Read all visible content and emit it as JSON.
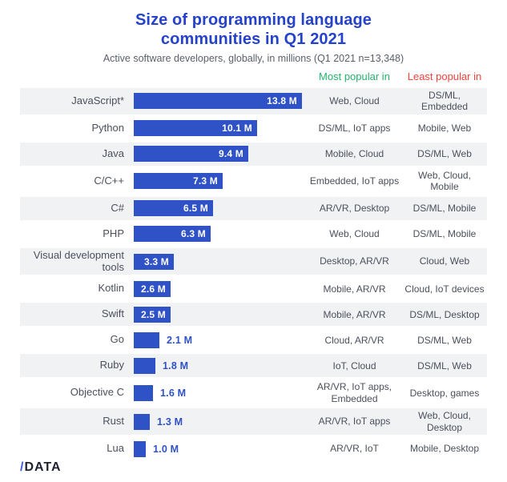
{
  "header": {
    "title": "Size of programming language communities in Q1 2021",
    "subtitle": "Active software developers, globally, in millions (Q1 2021 n=13,348)"
  },
  "columns": {
    "most_header": "Most popular in",
    "least_header": "Least popular in"
  },
  "colors": {
    "title_blue": "#2542cb",
    "bar_blue": "#2f52c7",
    "most_green": "#25b36c",
    "least_red": "#f9423b",
    "row_shade_gray": "#f1f2f4",
    "text_gray": "#4b505c",
    "logo_dark": "#1d2130"
  },
  "logo": {
    "slash": "/",
    "text": "DATA"
  },
  "chart_data": {
    "type": "bar",
    "orientation": "horizontal",
    "title": "Size of programming language communities in Q1 2021",
    "subtitle": "Active software developers, globally, in millions (Q1 2021 n=13,348)",
    "unit": "millions of developers",
    "xlim": [
      0,
      13.8
    ],
    "legend_position": "none",
    "grid": false,
    "categories": [
      "JavaScript*",
      "Python",
      "Java",
      "C/C++",
      "C#",
      "PHP",
      "Visual development tools",
      "Kotlin",
      "Swift",
      "Go",
      "Ruby",
      "Objective C",
      "Rust",
      "Lua"
    ],
    "values": [
      13.8,
      10.1,
      9.4,
      7.3,
      6.5,
      6.3,
      3.3,
      2.6,
      2.5,
      2.1,
      1.8,
      1.6,
      1.3,
      1.0
    ],
    "rows": [
      {
        "language": "JavaScript*",
        "value": 13.8,
        "value_label": "13.8 M",
        "most": "Web, Cloud",
        "least": "DS/ML, Embedded"
      },
      {
        "language": "Python",
        "value": 10.1,
        "value_label": "10.1 M",
        "most": "DS/ML, IoT apps",
        "least": "Mobile, Web"
      },
      {
        "language": "Java",
        "value": 9.4,
        "value_label": "9.4 M",
        "most": "Mobile, Cloud",
        "least": "DS/ML, Web"
      },
      {
        "language": "C/C++",
        "value": 7.3,
        "value_label": "7.3 M",
        "most": "Embedded, IoT apps",
        "least": "Web, Cloud, Mobile"
      },
      {
        "language": "C#",
        "value": 6.5,
        "value_label": "6.5 M",
        "most": "AR/VR, Desktop",
        "least": "DS/ML, Mobile"
      },
      {
        "language": "PHP",
        "value": 6.3,
        "value_label": "6.3 M",
        "most": "Web, Cloud",
        "least": "DS/ML, Mobile"
      },
      {
        "language": "Visual development tools",
        "value": 3.3,
        "value_label": "3.3 M",
        "most": "Desktop, AR/VR",
        "least": "Cloud, Web"
      },
      {
        "language": "Kotlin",
        "value": 2.6,
        "value_label": "2.6 M",
        "most": "Mobile, AR/VR",
        "least": "Cloud, IoT devices"
      },
      {
        "language": "Swift",
        "value": 2.5,
        "value_label": "2.5 M",
        "most": "Mobile, AR/VR",
        "least": "DS/ML, Desktop"
      },
      {
        "language": "Go",
        "value": 2.1,
        "value_label": "2.1 M",
        "most": "Cloud, AR/VR",
        "least": "DS/ML, Web"
      },
      {
        "language": "Ruby",
        "value": 1.8,
        "value_label": "1.8 M",
        "most": "IoT, Cloud",
        "least": "DS/ML, Web"
      },
      {
        "language": "Objective C",
        "value": 1.6,
        "value_label": "1.6 M",
        "most": "AR/VR, IoT apps, Embedded",
        "least": "Desktop, games"
      },
      {
        "language": "Rust",
        "value": 1.3,
        "value_label": "1.3 M",
        "most": "AR/VR, IoT apps",
        "least": "Web, Cloud, Desktop"
      },
      {
        "language": "Lua",
        "value": 1.0,
        "value_label": "1.0 M",
        "most": "AR/VR, IoT",
        "least": "Mobile, Desktop"
      }
    ]
  }
}
